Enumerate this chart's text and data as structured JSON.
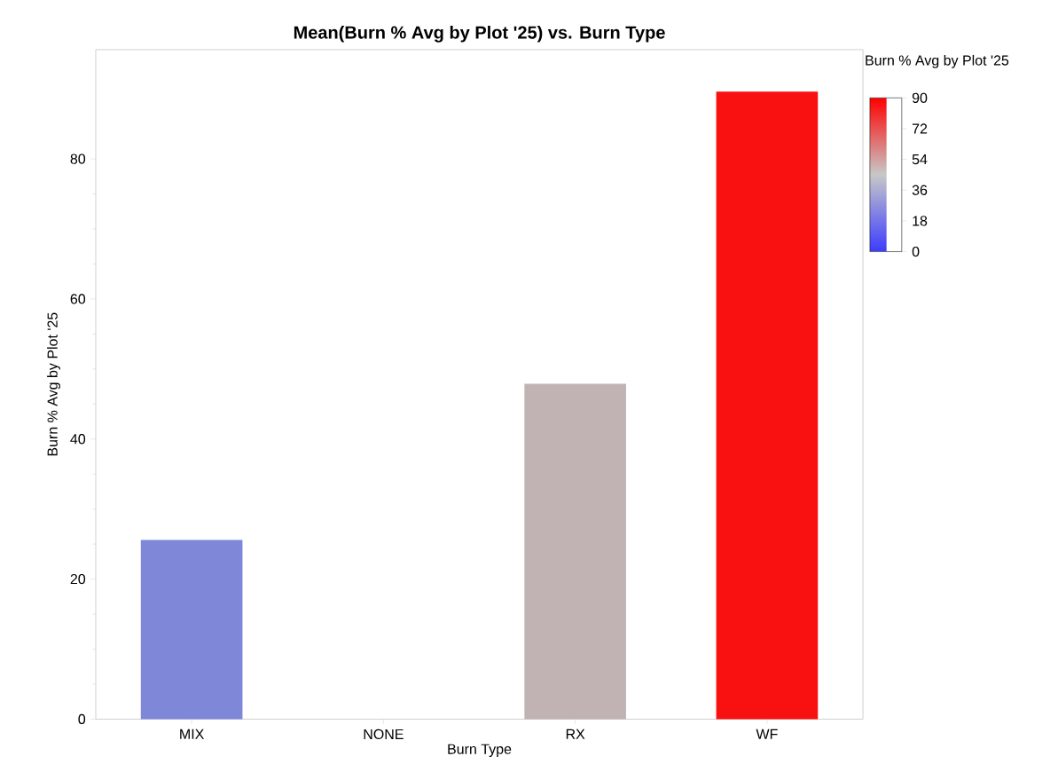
{
  "chart_data": {
    "type": "bar",
    "title": "Mean(Burn % Avg by Plot '25) vs. Burn Type",
    "xlabel": "Burn Type",
    "ylabel": "Burn % Avg by Plot '25",
    "categories": [
      "MIX",
      "NONE",
      "RX",
      "WF"
    ],
    "values": [
      25.6,
      null,
      47.9,
      89.6
    ],
    "colors": [
      "#7f87d8",
      "#c8c8c8",
      "#c1b3b3",
      "#f91111"
    ],
    "ylim": [
      0,
      95.6
    ],
    "yticks": [
      0,
      20,
      40,
      60,
      80
    ],
    "clabel": "Burn % Avg by Plot '25",
    "clim": [
      0,
      90
    ],
    "cticks": [
      0,
      18,
      36,
      54,
      72,
      90
    ]
  }
}
